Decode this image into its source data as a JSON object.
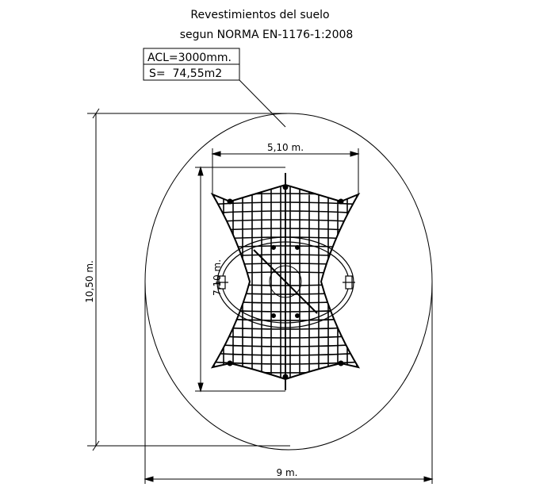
{
  "title": {
    "line1": "Revestimientos del suelo",
    "line2": "segun NORMA EN-1176-1:2008"
  },
  "label_box": {
    "acl": "ACL=3000mm.",
    "surface": "S=  74,55m2"
  },
  "dimensions": {
    "total_height": "10,50 m.",
    "total_width": "9 m.",
    "equipment_width": "5,10 m.",
    "equipment_height": "7,10 m."
  },
  "colors": {
    "line": "#000000",
    "background": "#ffffff"
  }
}
